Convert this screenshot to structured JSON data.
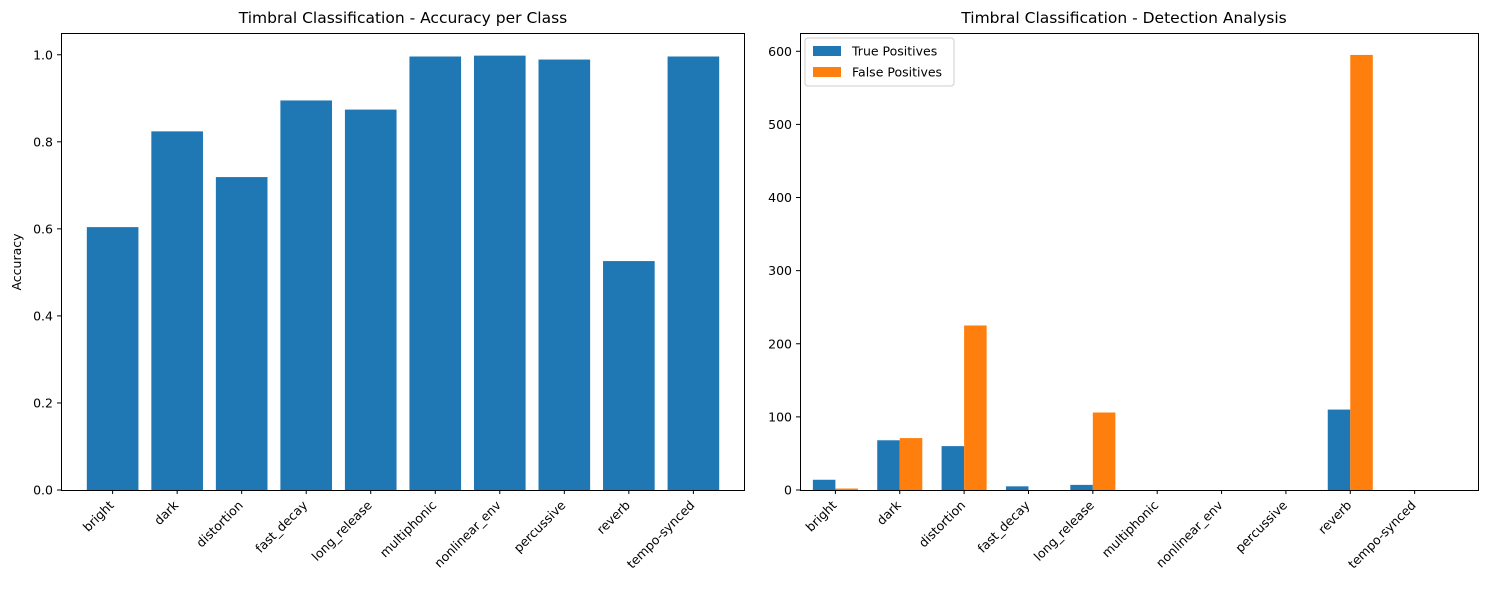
{
  "colors": {
    "blue": "#1f77b4",
    "orange": "#ff7f0e",
    "axis": "#000000",
    "legend_border": "#cccccc"
  },
  "chart_data": [
    {
      "type": "bar",
      "title": "Timbral Classification - Accuracy per Class",
      "xlabel": "",
      "ylabel": "Accuracy",
      "categories": [
        "bright",
        "dark",
        "distortion",
        "fast_decay",
        "long_release",
        "multiphonic",
        "nonlinear_env",
        "percussive",
        "reverb",
        "tempo-synced"
      ],
      "values": [
        0.604,
        0.824,
        0.719,
        0.895,
        0.874,
        0.996,
        0.998,
        0.989,
        0.526,
        0.996
      ],
      "ylim": [
        0,
        1.05
      ],
      "yticks": [
        0.0,
        0.2,
        0.4,
        0.6,
        0.8,
        1.0
      ],
      "ytick_labels": [
        "0.0",
        "0.2",
        "0.4",
        "0.6",
        "0.8",
        "1.0"
      ],
      "grid": false,
      "legend": null
    },
    {
      "type": "bar",
      "title": "Timbral Classification - Detection Analysis",
      "xlabel": "",
      "ylabel": "",
      "categories": [
        "bright",
        "dark",
        "distortion",
        "fast_decay",
        "long_release",
        "multiphonic",
        "nonlinear_env",
        "percussive",
        "reverb",
        "tempo-synced"
      ],
      "series": [
        {
          "name": "True Positives",
          "color": "#1f77b4",
          "values": [
            14,
            68,
            60,
            5,
            7,
            0,
            0,
            0,
            110,
            0
          ]
        },
        {
          "name": "False Positives",
          "color": "#ff7f0e",
          "values": [
            2,
            71,
            225,
            0,
            106,
            0,
            0,
            0,
            595,
            0
          ]
        }
      ],
      "ylim": [
        0,
        625
      ],
      "yticks": [
        0,
        100,
        200,
        300,
        400,
        500,
        600
      ],
      "ytick_labels": [
        "0",
        "100",
        "200",
        "300",
        "400",
        "500",
        "600"
      ],
      "grid": false,
      "legend": "top-left"
    }
  ]
}
